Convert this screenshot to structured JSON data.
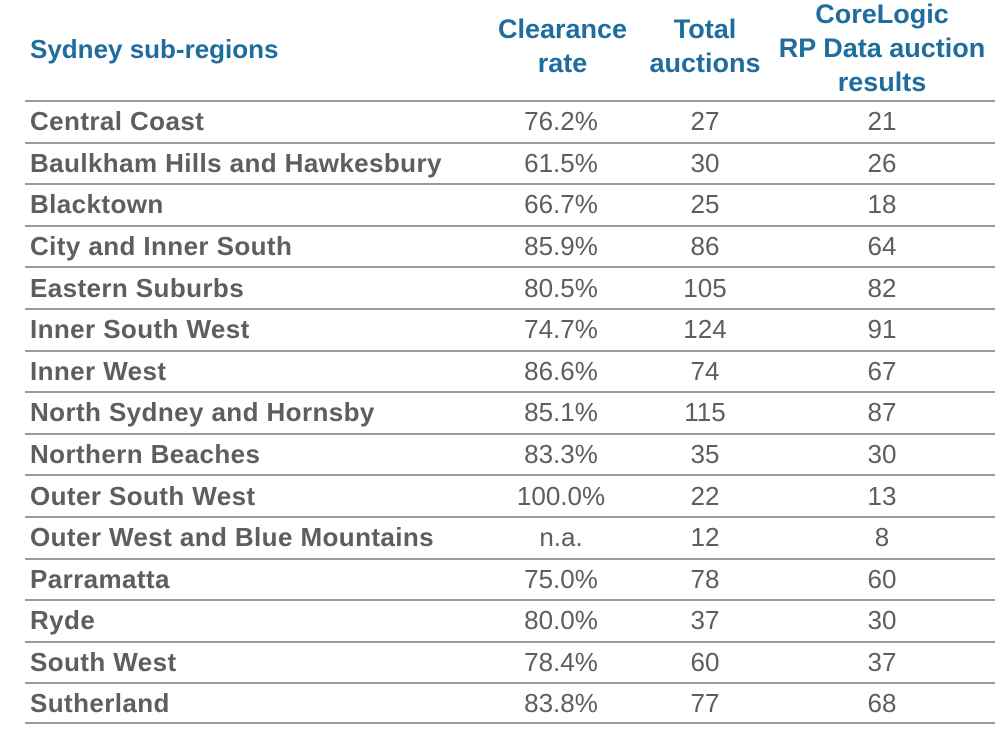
{
  "header": {
    "region_label": "Sydney sub-regions",
    "clearance_line1": "Clearance",
    "clearance_line2": "rate",
    "total_line1": "Total",
    "total_line2": "auctions",
    "corelogic_line1": "CoreLogic",
    "corelogic_line2": "RP Data auction",
    "corelogic_line3": "results"
  },
  "rows": [
    {
      "region": "Central Coast",
      "rate": "76.2%",
      "total": "27",
      "results": "21"
    },
    {
      "region": "Baulkham Hills and Hawkesbury",
      "rate": "61.5%",
      "total": "30",
      "results": "26"
    },
    {
      "region": "Blacktown",
      "rate": "66.7%",
      "total": "25",
      "results": "18"
    },
    {
      "region": "City and Inner South",
      "rate": "85.9%",
      "total": "86",
      "results": "64"
    },
    {
      "region": "Eastern Suburbs",
      "rate": "80.5%",
      "total": "105",
      "results": "82"
    },
    {
      "region": "Inner South West",
      "rate": "74.7%",
      "total": "124",
      "results": "91"
    },
    {
      "region": "Inner West",
      "rate": "86.6%",
      "total": "74",
      "results": "67"
    },
    {
      "region": "North Sydney and Hornsby",
      "rate": "85.1%",
      "total": "115",
      "results": "87"
    },
    {
      "region": "Northern Beaches",
      "rate": "83.3%",
      "total": "35",
      "results": "30"
    },
    {
      "region": "Outer South West",
      "rate": "100.0%",
      "total": "22",
      "results": "13"
    },
    {
      "region": "Outer West and Blue Mountains",
      "rate": "n.a.",
      "total": "12",
      "results": "8"
    },
    {
      "region": "Parramatta",
      "rate": "75.0%",
      "total": "78",
      "results": "60"
    },
    {
      "region": "Ryde",
      "rate": "80.0%",
      "total": "37",
      "results": "30"
    },
    {
      "region": "South West",
      "rate": "78.4%",
      "total": "60",
      "results": "37"
    },
    {
      "region": "Sutherland",
      "rate": "83.8%",
      "total": "77",
      "results": "68"
    }
  ],
  "colors": {
    "header_text": "#1f6d9e",
    "body_text": "#5e5e5e",
    "rule": "#9a9a9a"
  }
}
